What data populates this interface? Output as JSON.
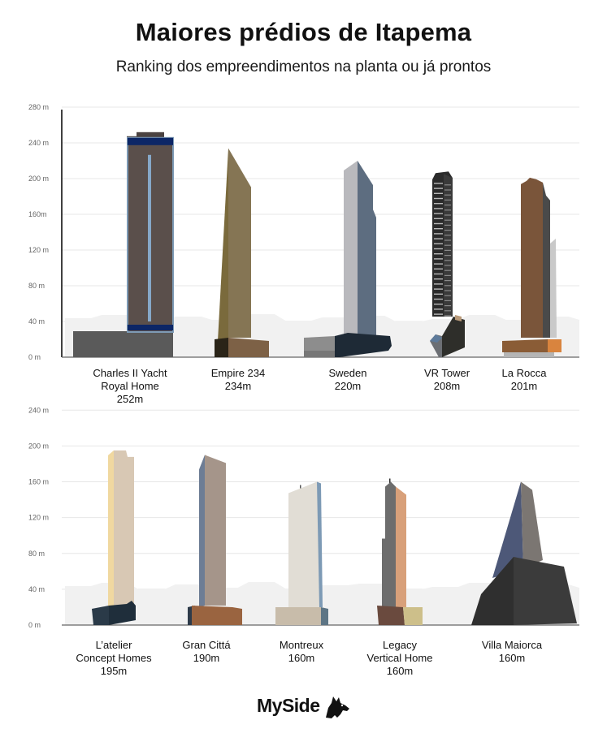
{
  "title": "Maiores prédios de Itapema",
  "subtitle": "Ranking dos empreendimentos na planta ou já prontos",
  "logo_text": "MySide",
  "chart_data": [
    {
      "type": "bar",
      "ylim": [
        0,
        280
      ],
      "yticks": [
        {
          "v": 0,
          "label": "0 m"
        },
        {
          "v": 40,
          "label": "40 m"
        },
        {
          "v": 80,
          "label": "80 m"
        },
        {
          "v": 120,
          "label": "120 m"
        },
        {
          "v": 160,
          "label": "160m"
        },
        {
          "v": 200,
          "label": "200 m"
        },
        {
          "v": 240,
          "label": "240 m"
        },
        {
          "v": 280,
          "label": "280 m"
        }
      ],
      "buildings": [
        {
          "name": [
            "Charles II Yacht",
            "Royal Home"
          ],
          "height_label": "252m",
          "value": 252
        },
        {
          "name": [
            "Empire 234"
          ],
          "height_label": "234m",
          "value": 234
        },
        {
          "name": [
            "Sweden"
          ],
          "height_label": "220m",
          "value": 220
        },
        {
          "name": [
            "VR Tower"
          ],
          "height_label": "208m",
          "value": 208
        },
        {
          "name": [
            "La Rocca"
          ],
          "height_label": "201m",
          "value": 201
        }
      ]
    },
    {
      "type": "bar",
      "ylim": [
        0,
        240
      ],
      "yticks": [
        {
          "v": 0,
          "label": "0 m"
        },
        {
          "v": 40,
          "label": "40 m"
        },
        {
          "v": 80,
          "label": "80 m"
        },
        {
          "v": 120,
          "label": "120 m"
        },
        {
          "v": 160,
          "label": "160 m"
        },
        {
          "v": 200,
          "label": "200 m"
        },
        {
          "v": 240,
          "label": "240 m"
        }
      ],
      "buildings": [
        {
          "name": [
            "L’atelier",
            "Concept Homes"
          ],
          "height_label": "195m",
          "value": 195
        },
        {
          "name": [
            "Gran Cittá"
          ],
          "height_label": "190m",
          "value": 190
        },
        {
          "name": [
            "Montreux"
          ],
          "height_label": "160m",
          "value": 160
        },
        {
          "name": [
            "Legacy",
            "Vertical Home"
          ],
          "height_label": "160m",
          "value": 160
        },
        {
          "name": [
            "Villa Maiorca"
          ],
          "height_label": "160m",
          "value": 160
        }
      ]
    }
  ]
}
